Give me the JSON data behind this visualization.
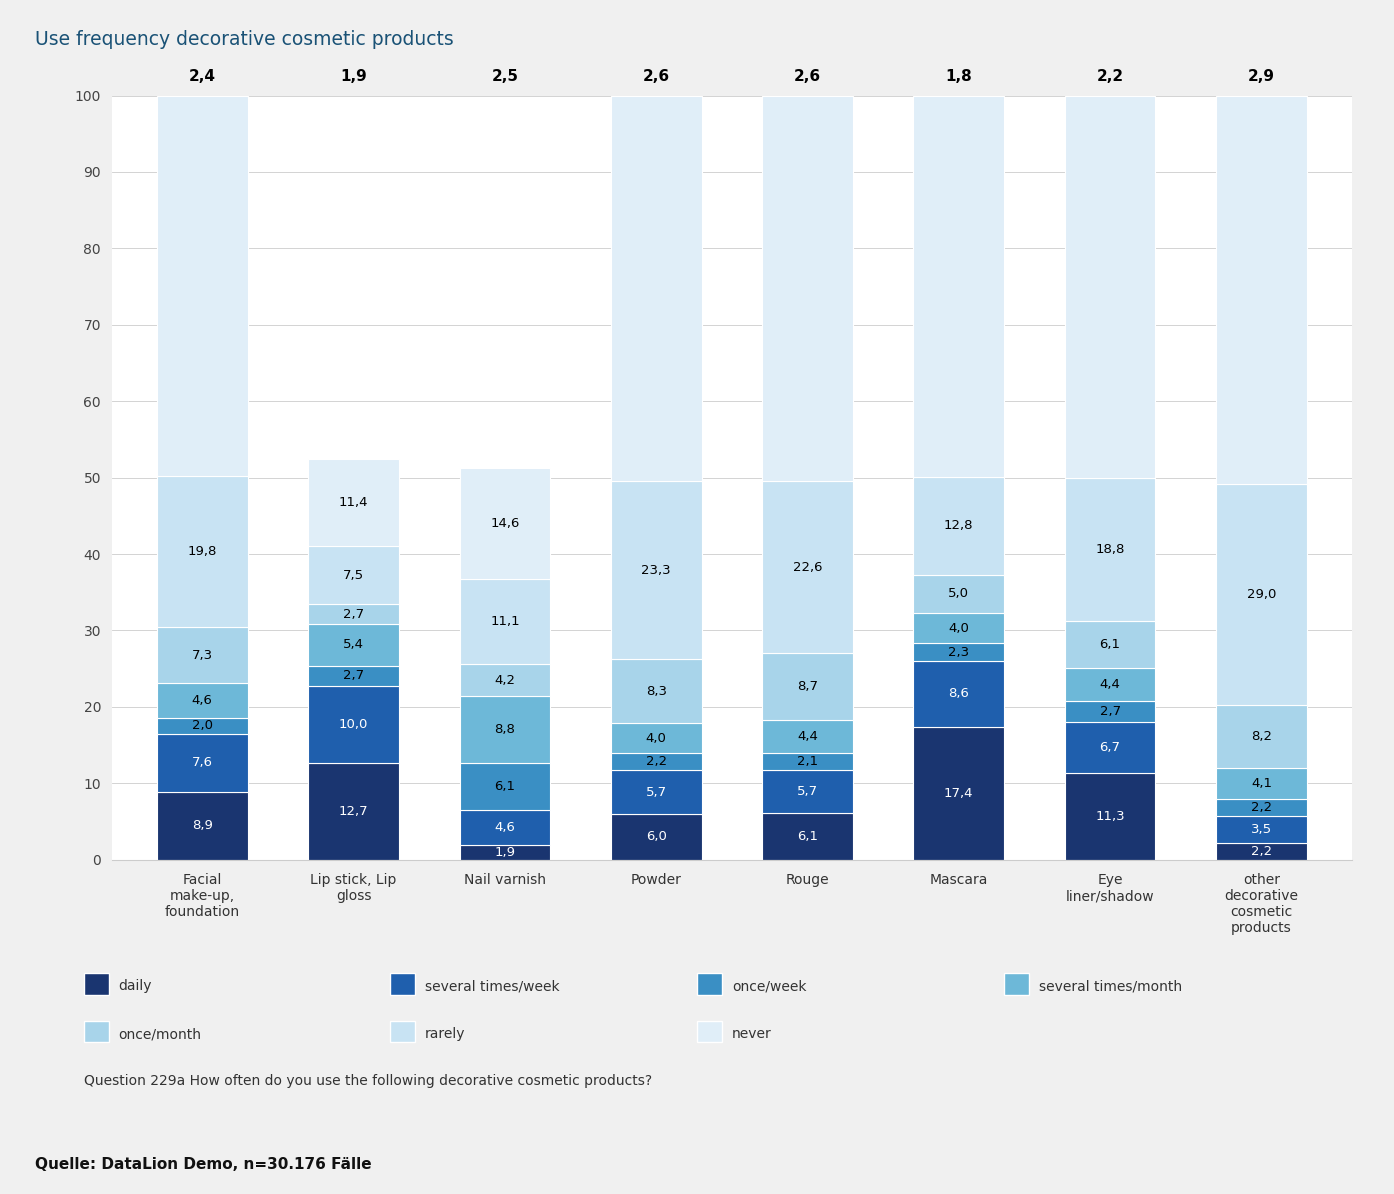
{
  "title": "Use frequency decorative cosmetic products",
  "categories": [
    "Facial\nmake-up,\nfoundation",
    "Lip stick, Lip\ngloss",
    "Nail varnish",
    "Powder",
    "Rouge",
    "Mascara",
    "Eye\nliner/shadow",
    "other\ndecorative\ncosmetic\nproducts"
  ],
  "means": [
    "2,4",
    "1,9",
    "2,5",
    "2,6",
    "2,6",
    "1,8",
    "2,2",
    "2,9"
  ],
  "segments": [
    [
      8.9,
      7.6,
      2.0,
      4.6,
      7.3,
      19.8,
      49.8
    ],
    [
      12.7,
      10.0,
      2.7,
      5.4,
      2.7,
      7.5,
      11.4
    ],
    [
      1.9,
      4.6,
      6.1,
      8.8,
      4.2,
      11.1,
      14.6
    ],
    [
      6.0,
      5.7,
      2.2,
      4.0,
      8.3,
      23.3,
      50.5
    ],
    [
      6.1,
      5.7,
      2.1,
      4.4,
      8.7,
      22.6,
      50.4
    ],
    [
      17.4,
      8.6,
      2.3,
      4.0,
      5.0,
      12.8,
      49.9
    ],
    [
      11.3,
      6.7,
      2.7,
      4.4,
      6.1,
      18.8,
      50.0
    ],
    [
      2.2,
      3.5,
      2.2,
      4.1,
      8.2,
      29.0,
      50.8
    ]
  ],
  "bar_labels": [
    [
      8.9,
      7.6,
      2.0,
      4.6,
      7.3,
      19.8,
      null
    ],
    [
      12.7,
      10.0,
      2.7,
      5.4,
      2.7,
      7.5,
      11.4
    ],
    [
      1.9,
      4.6,
      6.1,
      8.8,
      4.2,
      11.1,
      14.6
    ],
    [
      6.0,
      5.7,
      2.2,
      4.0,
      8.3,
      23.3,
      null
    ],
    [
      6.1,
      5.7,
      2.1,
      4.4,
      8.7,
      22.6,
      null
    ],
    [
      17.4,
      8.6,
      2.3,
      4.0,
      5.0,
      12.8,
      null
    ],
    [
      11.3,
      6.7,
      2.7,
      4.4,
      6.1,
      18.8,
      null
    ],
    [
      2.2,
      3.5,
      2.2,
      4.1,
      8.2,
      29.0,
      null
    ]
  ],
  "colors": [
    "#1a3570",
    "#1f5fad",
    "#3a8fc4",
    "#6db8d8",
    "#a8d4ea",
    "#c8e3f3",
    "#e0eef8"
  ],
  "legend_labels": [
    "daily",
    "several times/week",
    "once/week",
    "several times/month",
    "once/month",
    "rarely",
    "never"
  ],
  "ylim": [
    0,
    100
  ],
  "background_color": "#f0f0f0",
  "plot_bg": "#ffffff",
  "title_color": "#1a5276",
  "title_bg": "#cddce8",
  "footer_bg": "#e0e0e0",
  "question_text": "Question 229a How often do you use the following decorative cosmetic products?",
  "source_text": "Quelle: DataLion Demo, n=30.176 Fälle"
}
